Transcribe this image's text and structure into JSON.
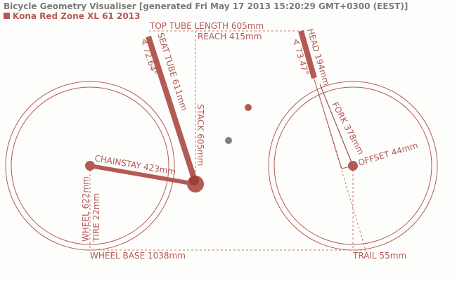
{
  "header": {
    "title": "Bicycle Geometry Visualiser [generated Fri May 17 2013 15:20:29 GMT+0300 (EEST)]",
    "bike_name": "Kona Red Zone XL 61 2013"
  },
  "colors": {
    "frame": "#b35a55",
    "guide": "#c07a76",
    "neutral": "#808080",
    "background": "#fdfdfb"
  },
  "labels": {
    "top_tube": "TOP TUBE LENGTH 605mm",
    "reach": "REACH 415mm",
    "seat_tube": "SEAT TUBE 611mm",
    "seat_angle": "∢ 72.64°",
    "head": "HEAD 194mm",
    "head_angle": "∢ 73.47°",
    "stack": "STACK 605mm",
    "fork": "FORK 378mm",
    "offset": "OFFSET 44mm",
    "chainstay": "CHAINSTAY 423mm",
    "wheel": "WHEEL 622mm",
    "tire": "TIRE 22mm",
    "wheel_base": "WHEEL BASE 1038mm",
    "trail": "TRAIL 55mm"
  }
}
